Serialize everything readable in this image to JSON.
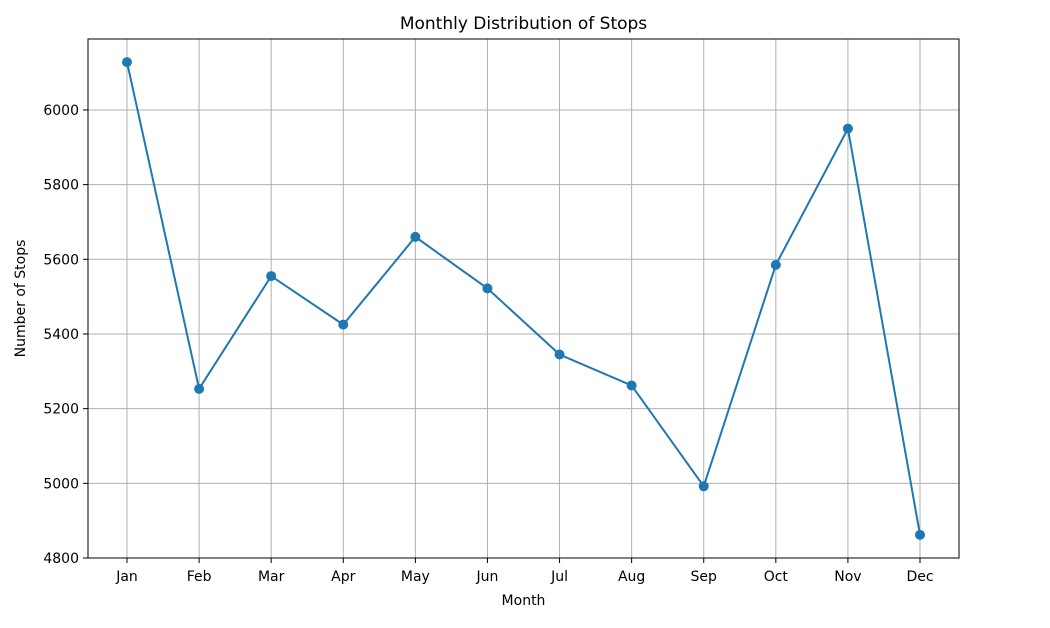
{
  "chart_data": {
    "type": "line",
    "title": "Monthly Distribution of Stops",
    "xlabel": "Month",
    "ylabel": "Number of Stops",
    "categories": [
      "Jan",
      "Feb",
      "Mar",
      "Apr",
      "May",
      "Jun",
      "Jul",
      "Aug",
      "Sep",
      "Oct",
      "Nov",
      "Dec"
    ],
    "series": [
      {
        "values": [
          6128,
          5253,
          5555,
          5425,
          5660,
          5522,
          5345,
          5262,
          4992,
          5585,
          5950,
          4862
        ],
        "color": "#1f77b4"
      }
    ],
    "ylim": [
      4800,
      6190
    ],
    "yticks": [
      4800,
      5000,
      5200,
      5400,
      5600,
      5800,
      6000
    ],
    "grid": true,
    "marker": "circle"
  }
}
